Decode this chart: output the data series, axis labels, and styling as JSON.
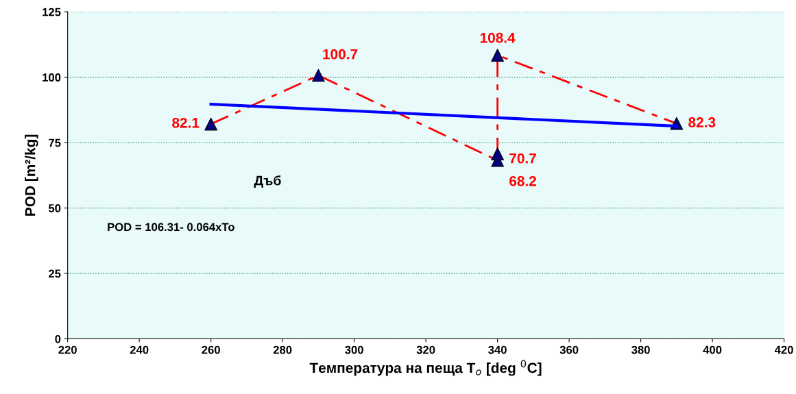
{
  "chart_data": {
    "type": "scatter",
    "xlabel": "Температура на пеща T$_{o}$ [deg $^{0}$C]",
    "ylabel": "POD [m²/kg]",
    "xlim": [
      220,
      420
    ],
    "xticks": [
      220,
      240,
      260,
      280,
      300,
      320,
      340,
      360,
      380,
      400,
      420
    ],
    "ylim": [
      0,
      125
    ],
    "yticks": [
      0,
      25,
      50,
      75,
      100,
      125
    ],
    "grid": "y",
    "legend": false,
    "series": [
      {
        "type": "line",
        "color": "#ff0000",
        "line_style": "dashed",
        "marker": "none",
        "x": [
          260,
          290,
          340,
          340,
          390
        ],
        "values": [
          82.1,
          100.7,
          68.2,
          108.4,
          82.3
        ]
      },
      {
        "color": "#000080",
        "marker": "triangle",
        "x": [
          260,
          290,
          340,
          340,
          340,
          390
        ],
        "values": [
          82.1,
          100.7,
          68.2,
          70.7,
          108.4,
          82.3
        ],
        "value_labels": [
          "82.1",
          "100.7",
          "68.2",
          "70.7",
          "108.4",
          "82.3"
        ]
      },
      {
        "type": "line",
        "color": "#0000ff",
        "line_style": "solid",
        "marker": "none",
        "x": [
          260,
          390
        ],
        "values": [
          89.7,
          81.3
        ]
      }
    ],
    "annotations": [
      "Дъб",
      "POD = 106.31- 0.064xTo"
    ]
  }
}
